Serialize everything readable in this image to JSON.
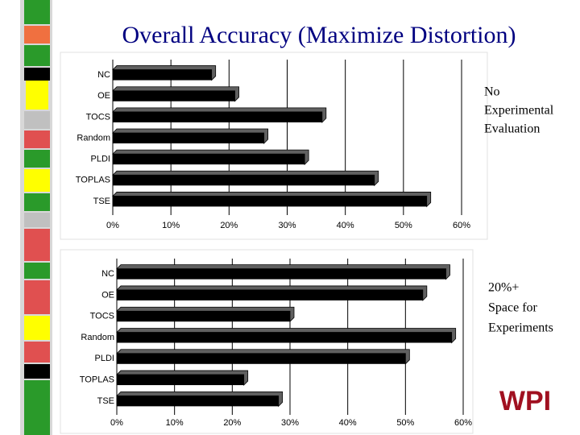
{
  "title": "Overall Accuracy (Maximize Distortion)",
  "logo": "WPI",
  "chart_data": [
    {
      "type": "bar",
      "orientation": "horizontal",
      "categories": [
        "NC",
        "OE",
        "TOCS",
        "Random",
        "PLDI",
        "TOPLAS",
        "TSE"
      ],
      "values": [
        17,
        21,
        36,
        26,
        33,
        45,
        54
      ],
      "color": "#000000",
      "grid": true,
      "xlim": [
        0,
        60
      ],
      "xticks": [
        {
          "value": 0,
          "label": "0%"
        },
        {
          "value": 10,
          "label": "10%"
        },
        {
          "value": 20,
          "label": "20%"
        },
        {
          "value": 30,
          "label": "30%"
        },
        {
          "value": 40,
          "label": "40%"
        },
        {
          "value": 50,
          "label": "50%"
        },
        {
          "value": 60,
          "label": "60%"
        }
      ],
      "annotation": [
        "No",
        "Experimental",
        "Evaluation"
      ]
    },
    {
      "type": "bar",
      "orientation": "horizontal",
      "categories": [
        "NC",
        "OE",
        "TOCS",
        "Random",
        "PLDI",
        "TOPLAS",
        "TSE"
      ],
      "values": [
        57,
        53,
        30,
        58,
        50,
        22,
        28
      ],
      "color": "#000000",
      "grid": true,
      "xlim": [
        0,
        60
      ],
      "xticks": [
        {
          "value": 0,
          "label": "0%"
        },
        {
          "value": 10,
          "label": "10%"
        },
        {
          "value": 20,
          "label": "20%"
        },
        {
          "value": 30,
          "label": "30%"
        },
        {
          "value": 40,
          "label": "40%"
        },
        {
          "value": 50,
          "label": "50%"
        },
        {
          "value": 60,
          "label": "60%"
        }
      ],
      "annotation": [
        "20%+",
        "Space for",
        "Experiments"
      ]
    }
  ]
}
